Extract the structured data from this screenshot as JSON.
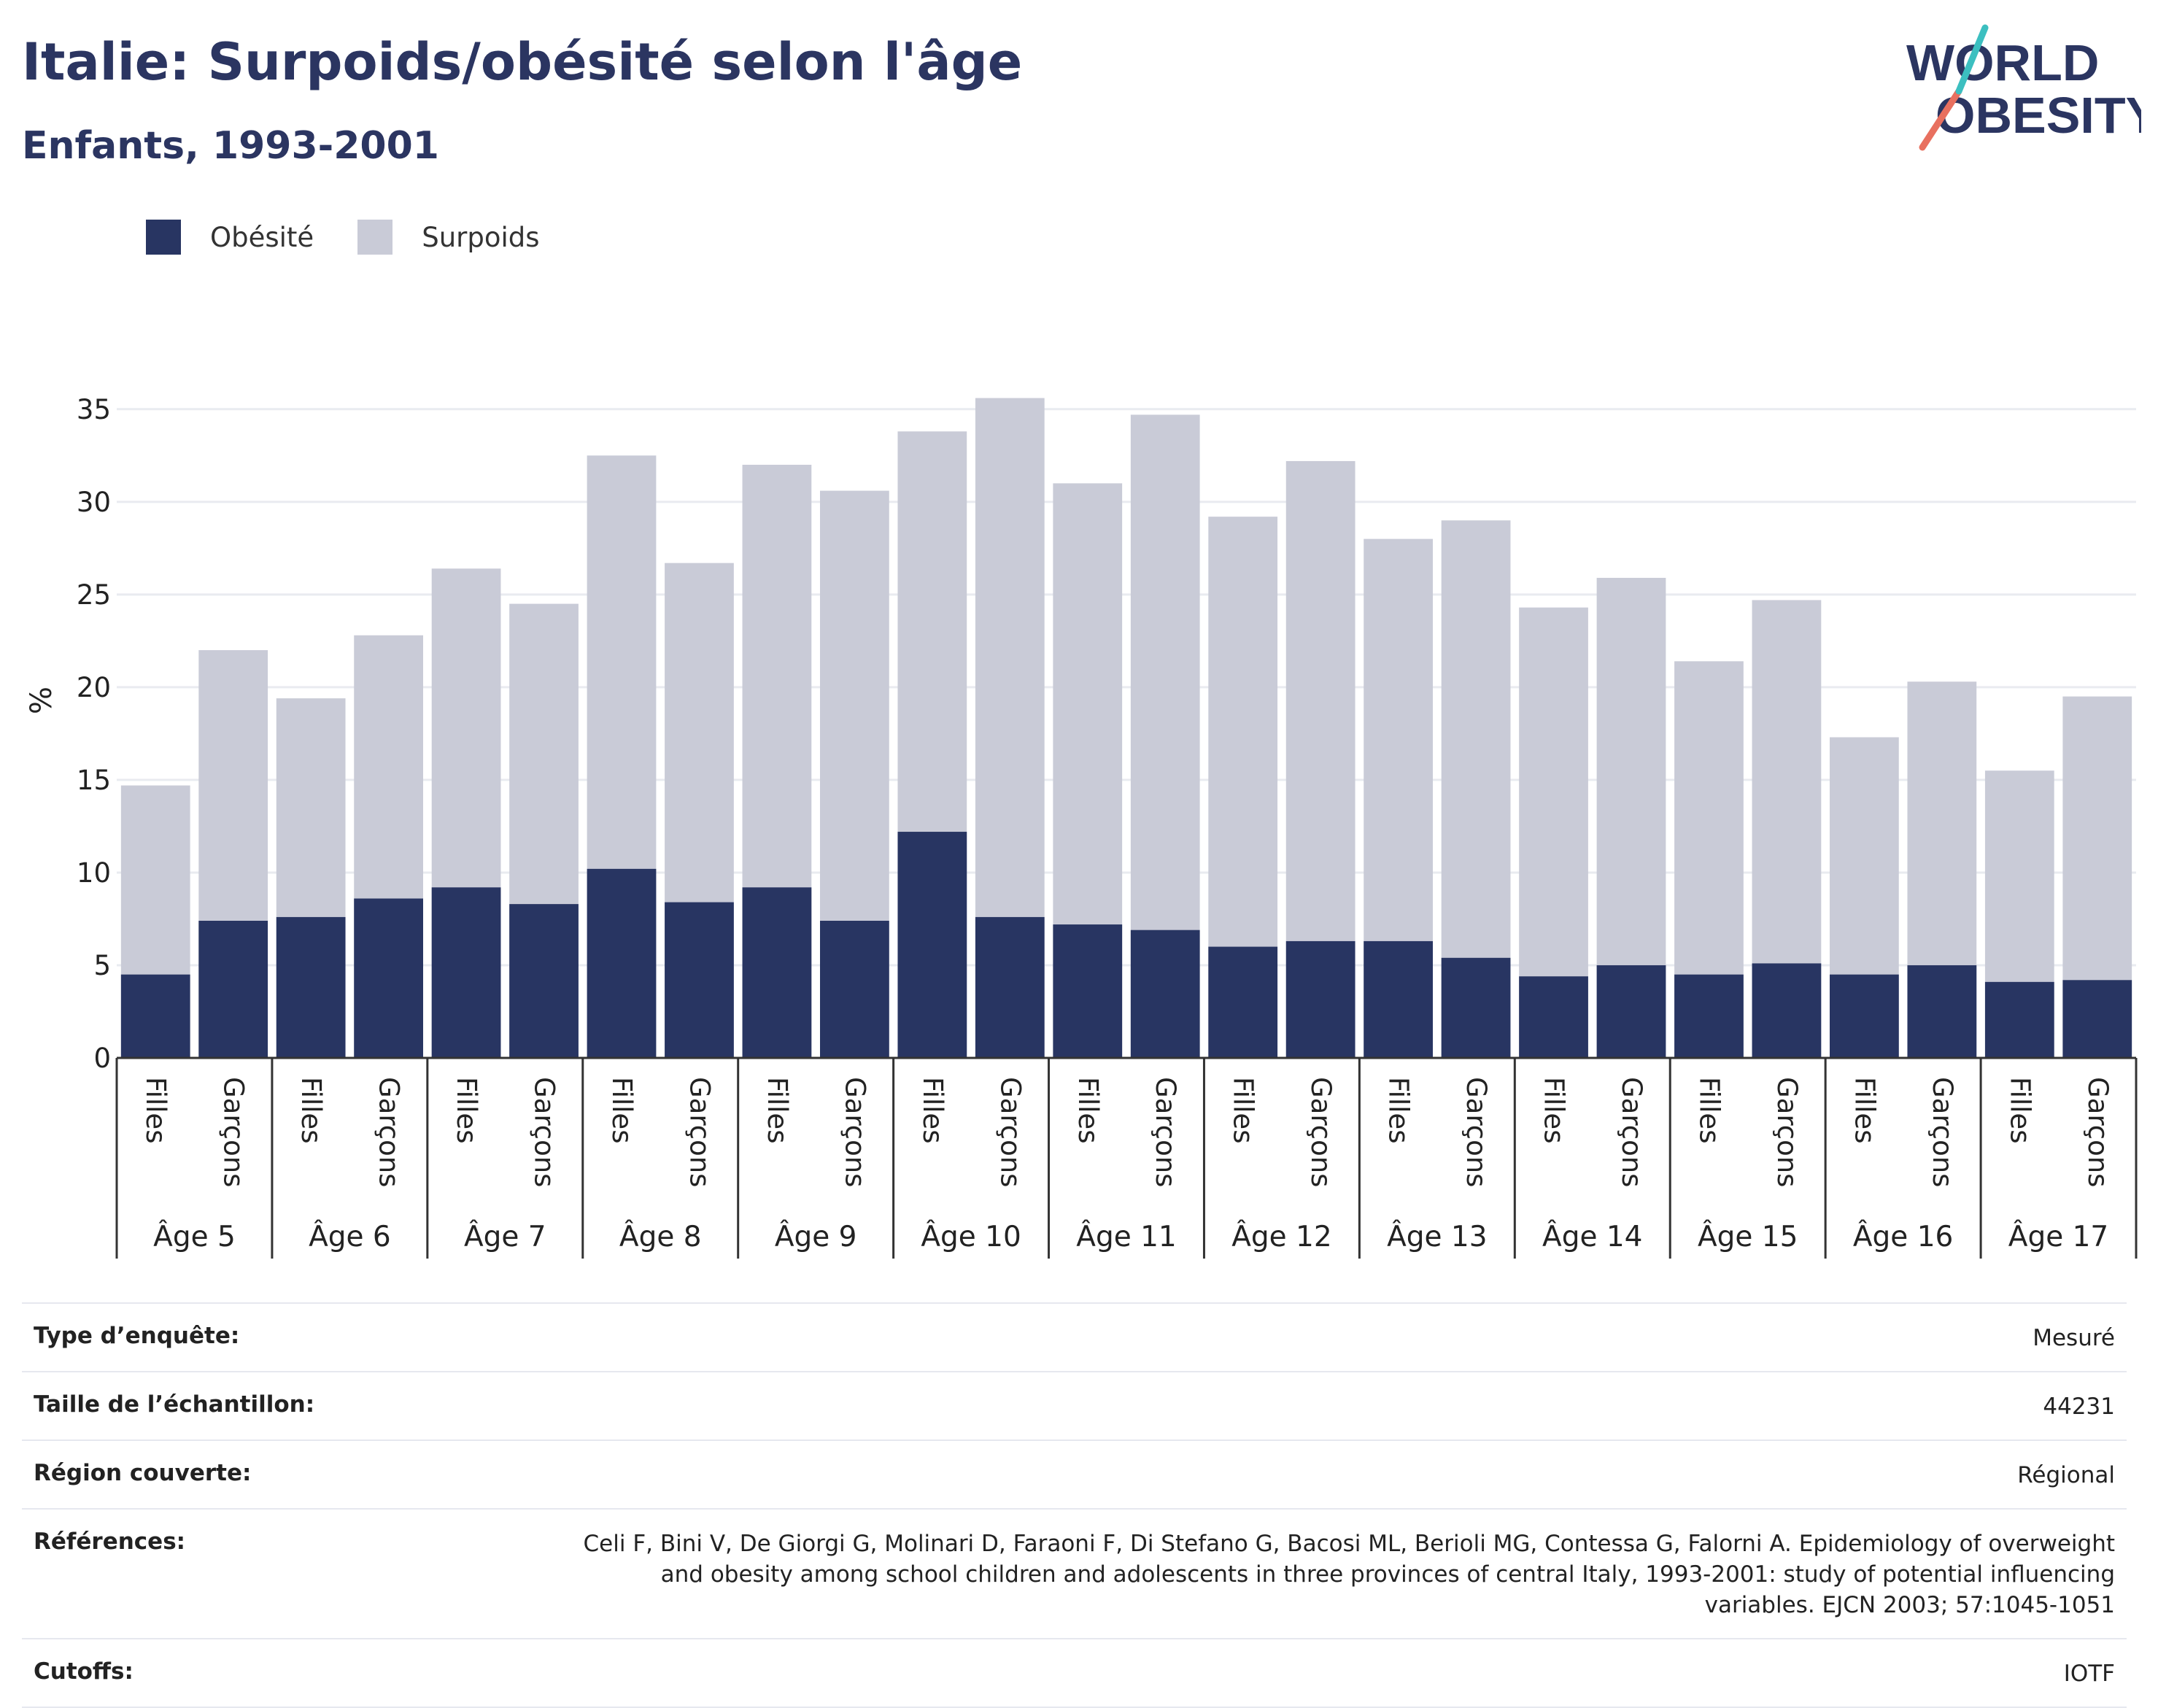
{
  "header": {
    "title": "Italie: Surpoids/obésité selon l'âge",
    "subtitle": "Enfants, 1993-2001"
  },
  "logo": {
    "line1": "WORLD",
    "line2": "OBESITY"
  },
  "legend": [
    {
      "label": "Obésité",
      "color": "#283562"
    },
    {
      "label": "Surpoids",
      "color": "#c9cbd7"
    }
  ],
  "chart_data": {
    "type": "bar",
    "stacked": false,
    "ylabel": "%",
    "ylim": [
      0,
      37
    ],
    "yticks": [
      0,
      5,
      10,
      15,
      20,
      25,
      30,
      35
    ],
    "grid": true,
    "legend_position": "top-left",
    "groups": [
      "Âge 5",
      "Âge 6",
      "Âge 7",
      "Âge 8",
      "Âge 9",
      "Âge 10",
      "Âge 11",
      "Âge 12",
      "Âge 13",
      "Âge 14",
      "Âge 15",
      "Âge 16",
      "Âge 17"
    ],
    "subcategories": [
      "Filles",
      "Garçons"
    ],
    "series": [
      {
        "name": "Surpoids",
        "values": [
          14.7,
          22.0,
          19.4,
          22.8,
          26.4,
          24.5,
          32.5,
          26.7,
          32.0,
          30.6,
          33.8,
          35.6,
          31.0,
          34.7,
          29.2,
          32.2,
          28.0,
          29.0,
          24.3,
          25.9,
          21.4,
          24.7,
          17.3,
          20.3,
          15.5,
          19.5
        ]
      },
      {
        "name": "Obésité",
        "values": [
          4.5,
          7.4,
          7.6,
          8.6,
          9.2,
          8.3,
          10.2,
          8.4,
          9.2,
          7.4,
          12.2,
          7.6,
          7.2,
          6.9,
          6.0,
          6.3,
          6.3,
          5.4,
          4.4,
          5.0,
          4.5,
          5.1,
          4.5,
          5.0,
          4.1,
          4.2
        ]
      }
    ]
  },
  "meta": [
    {
      "label": "Type d’enquête:",
      "value": "Mesuré"
    },
    {
      "label": "Taille de l’échantillon:",
      "value": "44231"
    },
    {
      "label": "Région couverte:",
      "value": "Régional"
    },
    {
      "label": "Références:",
      "value": "Celi F, Bini V, De Giorgi G, Molinari D, Faraoni F, Di Stefano G, Bacosi ML, Berioli MG, Contessa G, Falorni A. Epidemiology of overweight and obesity among school children and adolescents in three provinces of central Italy, 1993-2001: study of potential influencing variables. EJCN 2003; 57:1045-1051"
    },
    {
      "label": "Cutoffs:",
      "value": "IOTF"
    }
  ]
}
